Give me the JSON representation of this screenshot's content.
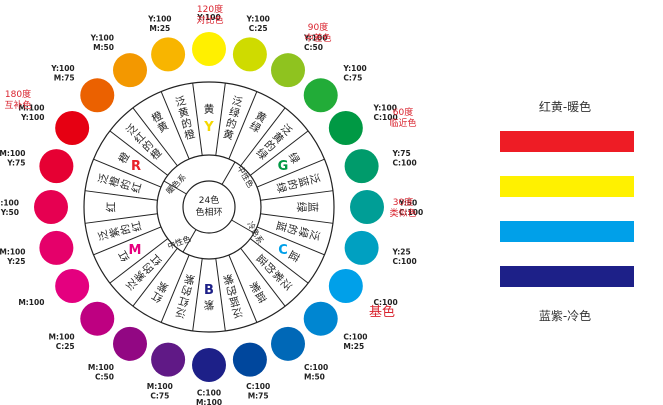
{
  "center": {
    "line1": "24色",
    "line2": "色相环"
  },
  "ring_labels": {
    "warm": "暖色系",
    "cool": "冷色系",
    "neutral_1": "中性色",
    "neutral_2": "中性色"
  },
  "primaries": {
    "Y": "Y",
    "R": "R",
    "M": "M",
    "B": "B",
    "C": "C",
    "G": "G"
  },
  "primary_colors": {
    "Y": "#f5d800",
    "R": "#e8232a",
    "M": "#e6007e",
    "B": "#1d2088",
    "C": "#00a0e9",
    "G": "#009944"
  },
  "hues": [
    {
      "name": "黄",
      "cmyk": "Y:100",
      "color": "#fff000"
    },
    {
      "name": "泛绿的黄",
      "cmyk": "Y:100\nC:25",
      "color": "#cfdb00"
    },
    {
      "name": "黄绿",
      "cmyk": "Y:100\nC:50",
      "color": "#8fc31f"
    },
    {
      "name": "泛黄的绿",
      "cmyk": "Y:100\nC:75",
      "color": "#22ac38"
    },
    {
      "name": "绿",
      "cmyk": "Y:100\nC:100",
      "color": "#009944"
    },
    {
      "name": "泛蓝的绿",
      "cmyk": "Y:75\nC:100",
      "color": "#009b6b"
    },
    {
      "name": "蓝绿",
      "cmyk": "Y:50\nC:100",
      "color": "#009e96"
    },
    {
      "name": "泛绿的蓝",
      "cmyk": "Y:25\nC:100",
      "color": "#00a0c1"
    },
    {
      "name": "蓝",
      "cmyk": "C:100",
      "color": "#00a0e9"
    },
    {
      "name": "泛紫的蓝",
      "cmyk": "C:100\nM:25",
      "color": "#0086d1"
    },
    {
      "name": "蓝紫",
      "cmyk": "C:100\nM:50",
      "color": "#0068b7"
    },
    {
      "name": "泛蓝的紫",
      "cmyk": "C:100\nM:75",
      "color": "#00479d"
    },
    {
      "name": "紫",
      "cmyk": "C:100\nM:100",
      "color": "#1d2088"
    },
    {
      "name": "泛红的紫",
      "cmyk": "M:100\nC:75",
      "color": "#601986"
    },
    {
      "name": "红紫",
      "cmyk": "M:100\nC:50",
      "color": "#920783"
    },
    {
      "name": "泛紫的红",
      "cmyk": "M:100\nC:25",
      "color": "#be0081"
    },
    {
      "name": "红",
      "cmyk": "M:100",
      "color": "#e4007f"
    },
    {
      "name": "泛紫的红",
      "cmyk": "M:100\nY:25",
      "color": "#e5006a"
    },
    {
      "name": "红",
      "cmyk": "M:100\nY:50",
      "color": "#e60051"
    },
    {
      "name": "泛橙的红",
      "cmyk": "M:100\nY:75",
      "color": "#e60033"
    },
    {
      "name": "橙",
      "cmyk": "M:100\nY:100",
      "color": "#e60012"
    },
    {
      "name": "泛红的橙",
      "cmyk": "Y:100\nM:75",
      "color": "#eb6100"
    },
    {
      "name": "橙黄",
      "cmyk": "Y:100\nM:50",
      "color": "#f39800"
    },
    {
      "name": "泛黄的橙",
      "cmyk": "Y:100\nM:25",
      "color": "#f8b500"
    }
  ],
  "annotations": {
    "a120": {
      "line1": "120度",
      "line2": "对比色"
    },
    "a90": {
      "line1": "90度",
      "line2": "中差色"
    },
    "a60": {
      "line1": "60度",
      "line2": "临近色"
    },
    "a30": {
      "line1": "30度",
      "line2": "类似色"
    },
    "a180": {
      "line1": "180度",
      "line2": "互补色"
    },
    "base": "基色"
  },
  "legend": {
    "warm_title": "红黄-暖色",
    "cool_title": "蓝紫-冷色",
    "swatches": [
      {
        "name": "red",
        "value": "#ee1c25"
      },
      {
        "name": "yellow",
        "value": "#fff100"
      },
      {
        "name": "cyan",
        "value": "#00a0e9"
      },
      {
        "name": "navy",
        "value": "#1d2088"
      }
    ]
  },
  "colors": {
    "annotation": "#d9232e",
    "text": "#222222",
    "line": "#222222"
  }
}
